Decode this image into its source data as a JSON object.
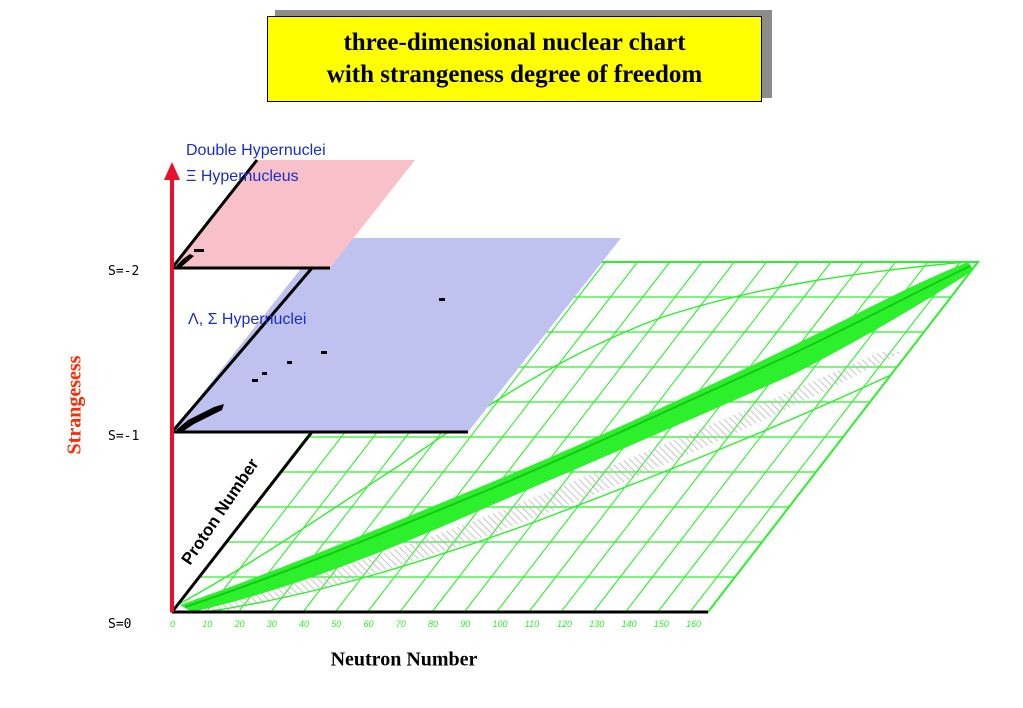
{
  "title": {
    "line1": "three-dimensional nuclear chart",
    "line2": "with strangeness degree of freedom"
  },
  "axes": {
    "y_title": "Strangesess",
    "x_title": "Neutron Number",
    "proton_axis_label": "Proton Number",
    "s_levels": [
      "S=0",
      "S=-1",
      "S=-2"
    ]
  },
  "planes": {
    "double_label": "Double Hypernuclei",
    "xi_label": "Ξ Hypernucleus",
    "lambda_label": "Λ, Σ Hypernuclei"
  },
  "neutron_ticks": [
    "0",
    "10",
    "20",
    "30",
    "40",
    "50",
    "60",
    "70",
    "80",
    "90",
    "100",
    "110",
    "120",
    "130",
    "140",
    "150",
    "160"
  ],
  "colors": {
    "title_box": "#ffff00",
    "title_shadow": "#8c8c8c",
    "strangeness_axis": "#e8102a",
    "strangeness_title": "#ff2a00",
    "plane_s_minus_2": "#f8c0c8",
    "plane_s_minus_1": "#bfc1ee",
    "nuclear_chart": "#2cf02c",
    "hypernuclei_labels": "#1a2ec8"
  }
}
